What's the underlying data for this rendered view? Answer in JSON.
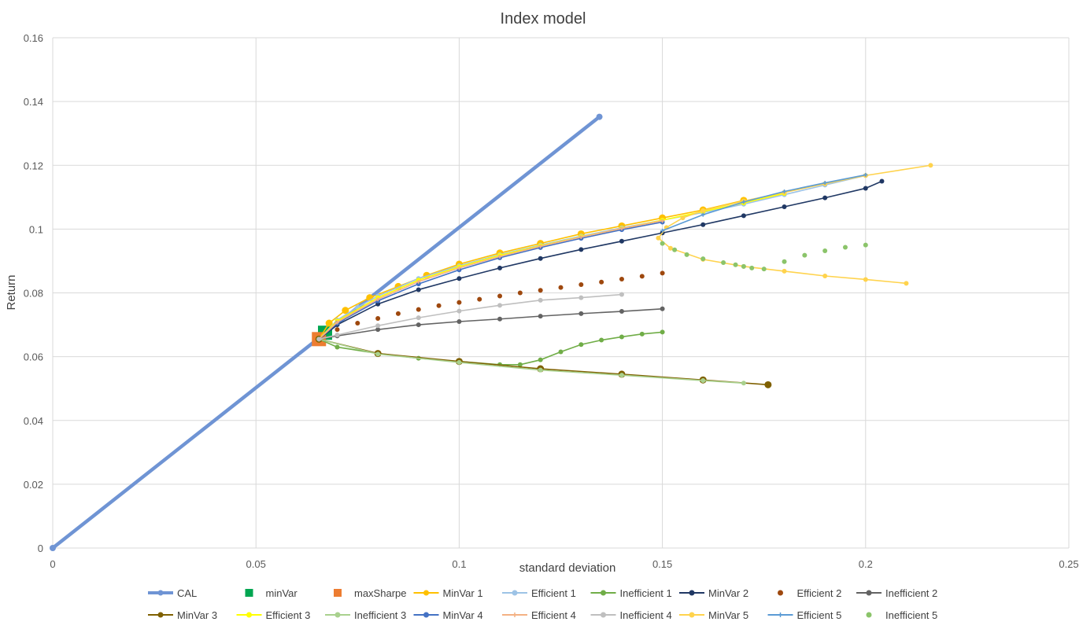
{
  "chart_data": {
    "type": "line",
    "title": "Index model",
    "xlabel": "standard deviation",
    "ylabel": "Return",
    "xlim": [
      0,
      0.25
    ],
    "ylim": [
      0,
      0.16
    ],
    "x_ticks": [
      "0",
      "0.05",
      "0.1",
      "0.15",
      "0.2",
      "0.25"
    ],
    "y_ticks": [
      "0",
      "0.02",
      "0.04",
      "0.06",
      "0.08",
      "0.1",
      "0.12",
      "0.14",
      "0.16"
    ],
    "x_tick_values": [
      0,
      0.05,
      0.1,
      0.15,
      0.2,
      0.25
    ],
    "y_tick_values": [
      0,
      0.02,
      0.04,
      0.06,
      0.08,
      0.1,
      0.12,
      0.14,
      0.16
    ],
    "grid": true,
    "legend_position": "bottom",
    "series": [
      {
        "name": "CAL",
        "color": "#6f94d4",
        "marker": "circle",
        "line": true,
        "x": [
          0,
          0.1345
        ],
        "y": [
          0,
          0.1352
        ]
      },
      {
        "name": "minVar",
        "color": "#00a651",
        "marker": "square",
        "line": false,
        "x": [
          0.067
        ],
        "y": [
          0.0675
        ]
      },
      {
        "name": "maxSharpe",
        "color": "#ed7d31",
        "marker": "square",
        "line": false,
        "x": [
          0.0655
        ],
        "y": [
          0.0655
        ]
      },
      {
        "name": "MinVar 1",
        "color": "#ffc000",
        "marker": "circle",
        "line": true,
        "x": [
          0.0655,
          0.068,
          0.072,
          0.078,
          0.085,
          0.092,
          0.1,
          0.11,
          0.12,
          0.13,
          0.14,
          0.15,
          0.16,
          0.17
        ],
        "y": [
          0.0655,
          0.0705,
          0.0745,
          0.0785,
          0.082,
          0.0855,
          0.089,
          0.0925,
          0.0955,
          0.0985,
          0.101,
          0.1035,
          0.106,
          0.109
        ]
      },
      {
        "name": "Efficient 1",
        "color": "#9dc3e6",
        "marker": "circle",
        "line": true,
        "x": [
          0.0655,
          0.07,
          0.075,
          0.08,
          0.09,
          0.1,
          0.11,
          0.12,
          0.13,
          0.14,
          0.15,
          0.16,
          0.17,
          0.18,
          0.19,
          0.2
        ],
        "y": [
          0.0655,
          0.0715,
          0.0755,
          0.079,
          0.0845,
          0.0885,
          0.092,
          0.095,
          0.0978,
          0.1004,
          0.1028,
          0.1052,
          0.1078,
          0.1108,
          0.1138,
          0.1168
        ]
      },
      {
        "name": "Inefficient 1",
        "color": "#70ad47",
        "marker": "circle",
        "line": true,
        "x": [
          0.0655,
          0.07,
          0.08,
          0.09,
          0.1,
          0.11,
          0.115,
          0.12,
          0.125,
          0.13,
          0.135,
          0.14,
          0.145,
          0.15
        ],
        "y": [
          0.0655,
          0.063,
          0.061,
          0.0595,
          0.0585,
          0.0575,
          0.0575,
          0.059,
          0.0615,
          0.0638,
          0.0652,
          0.0662,
          0.0671,
          0.0677
        ]
      },
      {
        "name": "MinVar 2",
        "color": "#203864",
        "marker": "circle",
        "line": true,
        "x": [
          0.0655,
          0.07,
          0.08,
          0.09,
          0.1,
          0.11,
          0.12,
          0.13,
          0.14,
          0.15,
          0.16,
          0.17,
          0.18,
          0.19,
          0.2,
          0.204
        ],
        "y": [
          0.0655,
          0.07,
          0.0765,
          0.081,
          0.0845,
          0.0878,
          0.0908,
          0.0936,
          0.0962,
          0.0988,
          0.1014,
          0.1042,
          0.107,
          0.1098,
          0.1128,
          0.115
        ]
      },
      {
        "name": "Efficient 2",
        "color": "#9e480e",
        "marker": "circle",
        "line": false,
        "x": [
          0.0655,
          0.07,
          0.075,
          0.08,
          0.085,
          0.09,
          0.095,
          0.1,
          0.105,
          0.11,
          0.115,
          0.12,
          0.125,
          0.13,
          0.135,
          0.14,
          0.145,
          0.15
        ],
        "y": [
          0.0655,
          0.0685,
          0.0705,
          0.072,
          0.0735,
          0.0748,
          0.076,
          0.077,
          0.078,
          0.079,
          0.08,
          0.0808,
          0.0817,
          0.0826,
          0.0834,
          0.0843,
          0.0852,
          0.0862
        ]
      },
      {
        "name": "Inefficient 2",
        "color": "#636363",
        "marker": "circle",
        "line": true,
        "x": [
          0.0655,
          0.07,
          0.08,
          0.09,
          0.1,
          0.11,
          0.12,
          0.13,
          0.14,
          0.15
        ],
        "y": [
          0.0655,
          0.0665,
          0.0685,
          0.07,
          0.071,
          0.0718,
          0.0727,
          0.0735,
          0.0742,
          0.075
        ]
      },
      {
        "name": "MinVar 3",
        "color": "#7f6000",
        "marker": "circle",
        "line": true,
        "x": [
          0.0655,
          0.08,
          0.1,
          0.12,
          0.14,
          0.16,
          0.176
        ],
        "y": [
          0.0655,
          0.061,
          0.0585,
          0.0562,
          0.0545,
          0.0527,
          0.0512
        ]
      },
      {
        "name": "Efficient 3",
        "color": "#ffff00",
        "marker": "circle",
        "line": true,
        "x": [
          0.0655,
          0.07,
          0.08,
          0.09,
          0.1,
          0.11,
          0.12,
          0.13,
          0.14,
          0.15,
          0.16,
          0.17,
          0.18
        ],
        "y": [
          0.0655,
          0.0712,
          0.0785,
          0.084,
          0.0882,
          0.0918,
          0.0948,
          0.0976,
          0.1002,
          0.1028,
          0.1055,
          0.1082,
          0.1112
        ]
      },
      {
        "name": "Inefficient 3",
        "color": "#a9d18e",
        "marker": "circle",
        "line": true,
        "x": [
          0.0655,
          0.08,
          0.1,
          0.12,
          0.14,
          0.16,
          0.17
        ],
        "y": [
          0.0655,
          0.0608,
          0.0582,
          0.0558,
          0.0542,
          0.0525,
          0.0517
        ]
      },
      {
        "name": "MinVar 4",
        "color": "#4472c4",
        "marker": "circle",
        "line": true,
        "x": [
          0.0655,
          0.07,
          0.08,
          0.09,
          0.1,
          0.11,
          0.12,
          0.13,
          0.14,
          0.15
        ],
        "y": [
          0.0655,
          0.0705,
          0.0775,
          0.0828,
          0.0872,
          0.091,
          0.0942,
          0.0971,
          0.0998,
          0.1022
        ]
      },
      {
        "name": "Efficient 4",
        "color": "#f4b183",
        "marker": "cross",
        "line": true,
        "x": [
          0.0655,
          0.07,
          0.08,
          0.09,
          0.1,
          0.11,
          0.12,
          0.13,
          0.14,
          0.15
        ],
        "y": [
          0.0655,
          0.0708,
          0.078,
          0.0835,
          0.0878,
          0.0914,
          0.0946,
          0.0975,
          0.1002,
          0.1026
        ]
      },
      {
        "name": "Inefficient 4",
        "color": "#bfbfbf",
        "marker": "circle",
        "line": true,
        "x": [
          0.0655,
          0.07,
          0.08,
          0.09,
          0.1,
          0.11,
          0.12,
          0.13,
          0.14
        ],
        "y": [
          0.0655,
          0.0668,
          0.0697,
          0.0722,
          0.0743,
          0.0761,
          0.0777,
          0.0785,
          0.0795
        ]
      },
      {
        "name": "MinVar 5",
        "color": "#ffd34d",
        "marker": "circle",
        "line": true,
        "x": [
          0.216,
          0.2,
          0.19,
          0.18,
          0.17,
          0.16,
          0.155,
          0.151,
          0.149,
          0.152,
          0.16,
          0.17,
          0.18,
          0.19,
          0.2,
          0.21
        ],
        "y": [
          0.12,
          0.1168,
          0.1142,
          0.1115,
          0.1088,
          0.1058,
          0.1035,
          0.1005,
          0.0972,
          0.094,
          0.0905,
          0.0883,
          0.0868,
          0.0853,
          0.0842,
          0.083
        ]
      },
      {
        "name": "Efficient 5",
        "color": "#5b9bd5",
        "marker": "cross",
        "line": true,
        "x": [
          0.15,
          0.16,
          0.17,
          0.18,
          0.19,
          0.2
        ],
        "y": [
          0.0995,
          0.1045,
          0.1085,
          0.1118,
          0.1145,
          0.117
        ]
      },
      {
        "name": "Inefficient 5",
        "color": "#8bc46a",
        "marker": "circle",
        "line": false,
        "x": [
          0.15,
          0.153,
          0.156,
          0.16,
          0.165,
          0.168,
          0.17,
          0.172,
          0.175,
          0.18,
          0.185,
          0.19,
          0.195,
          0.2
        ],
        "y": [
          0.0955,
          0.0935,
          0.092,
          0.0907,
          0.0895,
          0.0888,
          0.0883,
          0.0878,
          0.0875,
          0.0898,
          0.0918,
          0.0932,
          0.0943,
          0.095
        ]
      }
    ]
  }
}
